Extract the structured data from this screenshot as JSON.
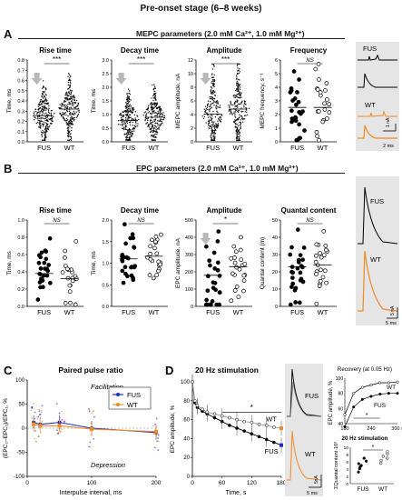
{
  "figure_title": "Pre-onset stage (6–8 weeks)",
  "panel_A": {
    "letter": "A",
    "heading": "MEPC parameters (2.0 mM Ca²⁺, 1.0 mM Mg²⁺)",
    "charts": [
      {
        "title": "Rise time",
        "ylabel": "Time, ms",
        "yticks": [
          "0.0",
          "0.1",
          "0.2",
          "0.3",
          "0.4",
          "0.5",
          "0.6",
          "0.7",
          "0.8"
        ],
        "sig": "***"
      },
      {
        "title": "Decay time",
        "ylabel": "Time, ms",
        "yticks": [
          "0.0",
          "0.5",
          "1.0",
          "1.5",
          "2.0",
          "2.5",
          "3.0"
        ],
        "sig": "***"
      },
      {
        "title": "Amplitude",
        "ylabel": "MEPC amplitude, nA",
        "yticks": [
          "0",
          "2",
          "4",
          "6",
          "8",
          "10",
          "12"
        ],
        "sig": "***"
      },
      {
        "title": "Frequency",
        "ylabel": "MEPC frequency, s⁻¹",
        "yticks": [
          "0",
          "1",
          "2",
          "3",
          "4",
          "5",
          "6"
        ],
        "sig": "NS"
      }
    ],
    "traces": {
      "fus": "FUS",
      "wt": "WT",
      "scale_y": "1 nA",
      "scale_x": "2 ms"
    }
  },
  "panel_B": {
    "letter": "B",
    "heading": "EPC parameters (2.0 mM Ca²⁺, 1.0 mM Mg²⁺)",
    "charts": [
      {
        "title": "Rise time",
        "ylabel": "Time, ms",
        "yticks": [
          "0.0",
          "0.2",
          "0.4",
          "0.6",
          "0.8",
          "1.0"
        ],
        "sig": "NS"
      },
      {
        "title": "Decay time",
        "ylabel": "Time, ms",
        "yticks": [
          "0.0",
          "0.5",
          "1.0",
          "1.5",
          "2.0"
        ],
        "sig": "NS"
      },
      {
        "title": "Amplitude",
        "ylabel": "EPC amplitude, nA",
        "yticks": [
          "0",
          "100",
          "200",
          "300",
          "400",
          "500"
        ],
        "sig": "*"
      },
      {
        "title": "Quantal content",
        "ylabel": "Quantal content (m)",
        "yticks": [
          "0",
          "10",
          "20",
          "30",
          "40",
          "50"
        ],
        "sig": "NS"
      }
    ],
    "traces": {
      "fus": "FUS",
      "wt": "WT",
      "scale_y": "5 nA",
      "scale_x": "5 ms"
    }
  },
  "group_labels": [
    "FUS",
    "WT"
  ],
  "panel_C": {
    "letter": "C",
    "title": "Paired pulse ratio",
    "ylabel": "(EPC₂–EPC₁)/EPC₁, %",
    "xlabel": "Interpulse interval, ms",
    "yticks": [
      "-100",
      "-50",
      "0",
      "50",
      "100"
    ],
    "xticks": [
      "0",
      "100",
      "200"
    ],
    "annot_top": "Facilitation",
    "annot_bottom": "Depression",
    "legend": [
      "FUS",
      "WT"
    ],
    "sig": "*"
  },
  "panel_D": {
    "letter": "D",
    "title": "20 Hz stimulation",
    "ylabel": "EPC amplitude, %",
    "xlabel": "Time, s",
    "yticks": [
      "0",
      "20",
      "40",
      "60",
      "80",
      "100"
    ],
    "xticks": [
      "0",
      "60",
      "120",
      "180"
    ],
    "sig": "*",
    "label_wt": "WT",
    "label_fus": "FUS",
    "trace_fus": "FUS",
    "trace_wt": "WT",
    "trace_scale_y": "5nA",
    "trace_scale_x": "5 ms",
    "recovery": {
      "title": "Recovery (at 0.05 Hz)",
      "ylabel": "EPC amplitude, %",
      "xticks": [
        "180",
        "240",
        "300 s"
      ],
      "yticks": [
        "40",
        "60",
        "80",
        "100"
      ],
      "wt": "WT",
      "fus": "FUS",
      "sig": "*"
    },
    "quantal": {
      "title": "20 Hz stimulation",
      "ylabel": "ΣQuantal content·10³",
      "yticks": [
        "0",
        "2",
        "4",
        "6",
        "8",
        "10"
      ],
      "groups": [
        "FUS",
        "WT"
      ],
      "sig": "*"
    }
  },
  "colors": {
    "fus": "#1f2fbf",
    "wt": "#f08a24",
    "trace_bg": "#e5e5e5",
    "arrow": "#b8b8b8"
  },
  "chart_data": [
    {
      "type": "line",
      "title": "Paired pulse ratio",
      "xlabel": "Interpulse interval, ms",
      "ylabel": "(EPC₂–EPC₁)/EPC₁, %",
      "x": [
        10,
        20,
        50,
        100,
        200
      ],
      "xlim": [
        0,
        200
      ],
      "ylim": [
        -100,
        100
      ],
      "series": [
        {
          "name": "FUS",
          "values": [
            12,
            8,
            12,
            0,
            -9
          ]
        },
        {
          "name": "WT",
          "values": [
            8,
            5,
            5,
            -2,
            -7
          ]
        }
      ]
    },
    {
      "type": "line",
      "title": "20 Hz stimulation",
      "xlabel": "Time, s",
      "ylabel": "EPC amplitude, %",
      "x": [
        0,
        5,
        10,
        20,
        30,
        45,
        60,
        75,
        90,
        105,
        120,
        135,
        150,
        165,
        180
      ],
      "xlim": [
        0,
        180
      ],
      "ylim": [
        0,
        100
      ],
      "series": [
        {
          "name": "FUS",
          "values": [
            100,
            78,
            73,
            69,
            66,
            62,
            58,
            54,
            51,
            48,
            45,
            42,
            39,
            36,
            33
          ]
        },
        {
          "name": "WT",
          "values": [
            100,
            80,
            75,
            71,
            68,
            66,
            64,
            62,
            60,
            58,
            57,
            55,
            54,
            52,
            51
          ]
        }
      ]
    },
    {
      "type": "line",
      "title": "Recovery (at 0.05 Hz)",
      "ylabel": "EPC amplitude, %",
      "x": [
        180,
        200,
        220,
        240,
        260,
        280,
        300
      ],
      "xlim": [
        180,
        300
      ],
      "ylim": [
        40,
        100
      ],
      "series": [
        {
          "name": "WT",
          "values": [
            52,
            80,
            88,
            91,
            94,
            94,
            95
          ]
        },
        {
          "name": "FUS",
          "values": [
            36,
            62,
            72,
            76,
            79,
            80,
            80
          ]
        }
      ]
    },
    {
      "type": "scatter",
      "title": "20 Hz stimulation",
      "ylabel": "ΣQuantal content·10³",
      "categories": [
        "FUS",
        "WT"
      ],
      "ylim": [
        0,
        10
      ],
      "series": [
        {
          "name": "FUS",
          "values": [
            3.2,
            4.1,
            4.6,
            5.0,
            5.5,
            6.2,
            7.0
          ]
        },
        {
          "name": "WT",
          "values": [
            5.6,
            6.4,
            7.0,
            7.5,
            8.2,
            8.8
          ]
        }
      ]
    }
  ]
}
